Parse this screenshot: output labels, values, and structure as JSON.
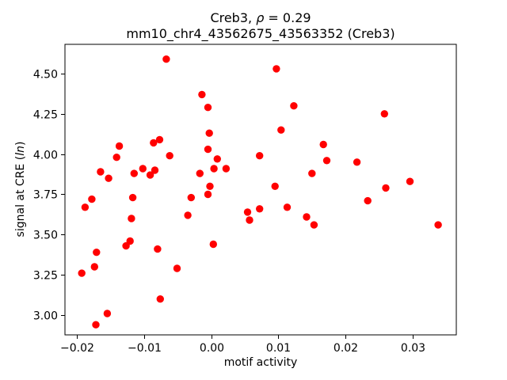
{
  "title": {
    "line1_prefix": "Creb3, ",
    "line1_rho": "ρ",
    "line1_suffix": " = 0.29",
    "line2": "mm10_chr4_43562675_43563352 (Creb3)"
  },
  "axes": {
    "xlabel": "motif activity",
    "ylabel_prefix": "signal at CRE (",
    "ylabel_italic": "ln",
    "ylabel_suffix": ")",
    "xtick_labels": [
      "−0.02",
      "−0.01",
      "0.00",
      "0.01",
      "0.02",
      "0.03"
    ],
    "ytick_labels": [
      "3.00",
      "3.25",
      "3.50",
      "3.75",
      "4.00",
      "4.25",
      "4.50"
    ]
  },
  "chart_data": {
    "type": "scatter",
    "title": "Creb3, ρ = 0.29\nmm10_chr4_43562675_43563352 (Creb3)",
    "xlabel": "motif activity",
    "ylabel": "signal at CRE (ln)",
    "legend": "none",
    "grid": false,
    "marker_color": "#ff0000",
    "xlim": [
      -0.0218,
      0.0365
    ],
    "ylim": [
      2.877,
      4.682
    ],
    "xticks": [
      -0.02,
      -0.01,
      0.0,
      0.01,
      0.02,
      0.03
    ],
    "yticks": [
      3.0,
      3.25,
      3.5,
      3.75,
      4.0,
      4.25,
      4.5
    ],
    "points": [
      [
        -0.0067,
        4.59
      ],
      [
        -0.0014,
        4.37
      ],
      [
        -0.0005,
        4.29
      ],
      [
        -0.0003,
        4.13
      ],
      [
        -0.0137,
        4.05
      ],
      [
        -0.0086,
        4.07
      ],
      [
        -0.0077,
        4.09
      ],
      [
        -0.0005,
        4.03
      ],
      [
        -0.0141,
        3.98
      ],
      [
        -0.0062,
        3.99
      ],
      [
        0.0009,
        3.97
      ],
      [
        -0.0165,
        3.89
      ],
      [
        -0.0153,
        3.85
      ],
      [
        -0.0115,
        3.88
      ],
      [
        -0.0102,
        3.91
      ],
      [
        -0.0091,
        3.87
      ],
      [
        -0.0084,
        3.9
      ],
      [
        -0.0017,
        3.88
      ],
      [
        0.0004,
        3.91
      ],
      [
        0.0022,
        3.91
      ],
      [
        -0.0002,
        3.8
      ],
      [
        0.0072,
        3.99
      ],
      [
        0.0097,
        4.53
      ],
      [
        0.0123,
        4.3
      ],
      [
        0.0258,
        4.25
      ],
      [
        0.0104,
        4.15
      ],
      [
        0.0167,
        4.06
      ],
      [
        0.0172,
        3.96
      ],
      [
        0.0217,
        3.95
      ],
      [
        0.015,
        3.88
      ],
      [
        0.0296,
        3.83
      ],
      [
        0.026,
        3.79
      ],
      [
        0.0095,
        3.8
      ],
      [
        -0.0005,
        3.75
      ],
      [
        -0.0178,
        3.72
      ],
      [
        -0.0188,
        3.67
      ],
      [
        -0.0117,
        3.73
      ],
      [
        -0.0119,
        3.6
      ],
      [
        -0.003,
        3.73
      ],
      [
        -0.0035,
        3.62
      ],
      [
        0.0054,
        3.64
      ],
      [
        0.0057,
        3.59
      ],
      [
        0.0072,
        3.66
      ],
      [
        -0.0127,
        3.43
      ],
      [
        -0.0121,
        3.46
      ],
      [
        -0.008,
        3.41
      ],
      [
        0.0003,
        3.44
      ],
      [
        -0.0171,
        3.39
      ],
      [
        -0.0174,
        3.3
      ],
      [
        -0.0193,
        3.26
      ],
      [
        -0.0051,
        3.29
      ],
      [
        -0.0076,
        3.1
      ],
      [
        -0.0155,
        3.01
      ],
      [
        -0.0172,
        2.94
      ],
      [
        0.0113,
        3.67
      ],
      [
        0.0142,
        3.61
      ],
      [
        0.0153,
        3.56
      ],
      [
        0.0233,
        3.71
      ],
      [
        0.0338,
        3.56
      ]
    ]
  }
}
